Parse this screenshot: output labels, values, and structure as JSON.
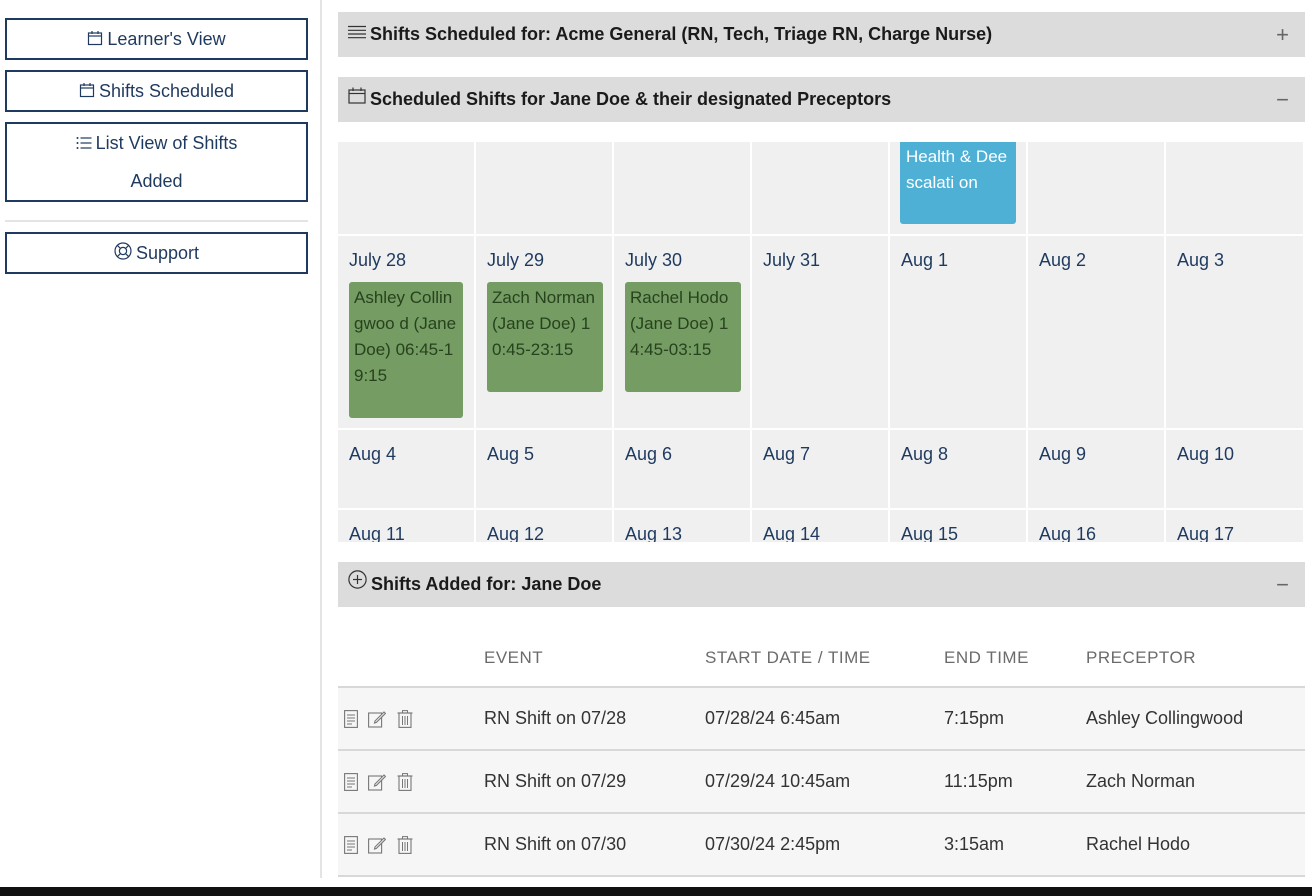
{
  "sidebar": {
    "learners_view": "Learner's View",
    "shifts_scheduled": "Shifts Scheduled",
    "list_view_line1": "List View of Shifts",
    "list_view_line2": "Added",
    "support": "Support"
  },
  "panels": {
    "scheduled_for_site": {
      "title": "Shifts Scheduled for: Acme General (RN, Tech, Triage RN, Charge Nurse)",
      "toggle": "+"
    },
    "scheduled_for_learner": {
      "title": "Scheduled Shifts for Jane Doe & their designated Preceptors",
      "toggle": "−"
    },
    "added_for": {
      "title": "Shifts Added for: Jane Doe",
      "toggle": "−"
    }
  },
  "calendar": {
    "partial_event": "Health & Deescalati on",
    "weeks": [
      {
        "days": [
          "July 28",
          "July 29",
          "July 30",
          "July 31",
          "Aug 1",
          "Aug 2",
          "Aug 3"
        ]
      },
      {
        "days": [
          "Aug 4",
          "Aug 5",
          "Aug 6",
          "Aug 7",
          "Aug 8",
          "Aug 9",
          "Aug 10"
        ]
      },
      {
        "days": [
          "Aug 11",
          "Aug 12",
          "Aug 13",
          "Aug 14",
          "Aug 15",
          "Aug 16",
          "Aug 17"
        ]
      }
    ],
    "events": [
      "Ashley Collingwoo d (Jane Doe) 06:45-19:15",
      "Zach Norman (Jane Doe) 10:45-23:15",
      "Rachel Hodo (Jane Doe) 14:45-03:15"
    ]
  },
  "table": {
    "headers": [
      "EVENT",
      "START DATE / TIME",
      "END TIME",
      "PRECEPTOR"
    ],
    "rows": [
      {
        "event": "RN Shift on 07/28",
        "start": "07/28/24 6:45am",
        "end": "7:15pm",
        "preceptor": "Ashley Collingwood"
      },
      {
        "event": "RN Shift on 07/29",
        "start": "07/29/24 10:45am",
        "end": "11:15pm",
        "preceptor": "Zach Norman"
      },
      {
        "event": "RN Shift on 07/30",
        "start": "07/30/24 2:45pm",
        "end": "3:15am",
        "preceptor": "Rachel Hodo"
      }
    ]
  },
  "colors": {
    "navy": "#1f3a5f",
    "event_green": "#749c63",
    "event_blue": "#4fb0d6",
    "panel_header": "#dcdcdc"
  }
}
